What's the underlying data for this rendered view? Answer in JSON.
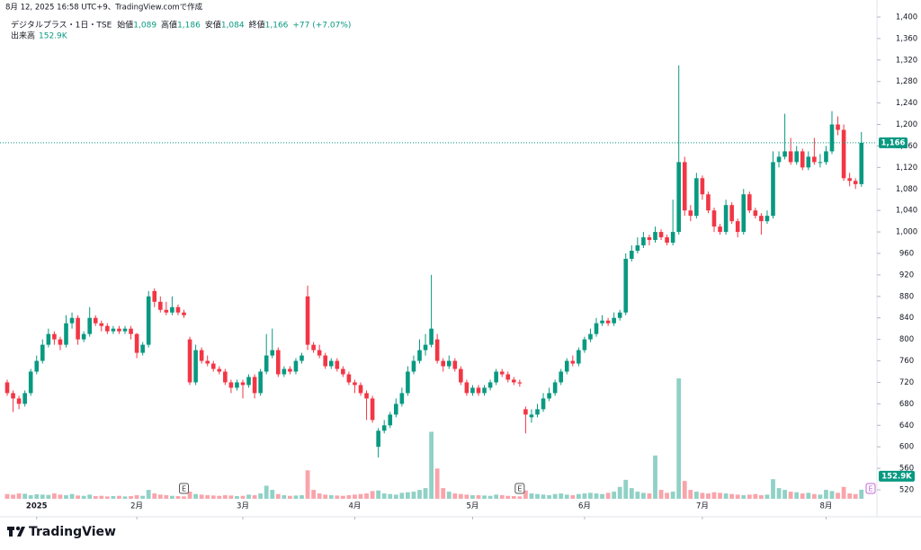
{
  "header": "8月 12, 2025 16:58 UTC+9、TradingView.comで作成",
  "chart_data": {
    "type": "candlestick",
    "symbol": "デジタルプラス・1日・TSE",
    "legend": [
      {
        "label": "始値",
        "value": "1,089"
      },
      {
        "label": "高値",
        "value": "1,186"
      },
      {
        "label": "安値",
        "value": "1,084"
      },
      {
        "label": "終値",
        "value": "1,166"
      }
    ],
    "change": "+77 (+7.07%)",
    "up_color": "#089981",
    "down_color": "#f23645",
    "ylim": [
      503.3,
      1415
    ],
    "yticks": [
      520,
      560,
      600,
      640,
      680,
      720,
      760,
      800,
      840,
      880,
      920,
      960,
      {
        "value": 1000,
        "label": "1,000"
      },
      {
        "value": 1040,
        "label": "1,040"
      },
      {
        "value": 1080,
        "label": "1,080"
      },
      {
        "value": 1120,
        "label": "1,120"
      },
      {
        "value": 1160,
        "label": "1,160"
      },
      {
        "value": 1200,
        "label": "1,200"
      },
      {
        "value": 1240,
        "label": "1,240"
      },
      {
        "value": 1280,
        "label": "1,280"
      },
      {
        "value": 1320,
        "label": "1,320"
      },
      {
        "value": 1360,
        "label": "1,360"
      },
      {
        "value": 1400,
        "label": "1,400"
      }
    ],
    "xticks": [
      {
        "value": 5,
        "label": "2025"
      },
      {
        "value": 22,
        "label": "2月"
      },
      {
        "value": 40,
        "label": "3月"
      },
      {
        "value": 59,
        "label": "4月"
      },
      {
        "value": 79,
        "label": "5月"
      },
      {
        "value": 98,
        "label": "6月"
      },
      {
        "value": 118,
        "label": "7月"
      },
      {
        "value": 139,
        "label": "8月"
      }
    ],
    "current_price": {
      "value": 1166,
      "label": "1,166"
    },
    "events": [
      {
        "index": 30,
        "label": "E"
      },
      {
        "index": 87,
        "label": "E"
      },
      {
        "index": 148,
        "label": "E"
      }
    ],
    "candles": [
      [
        720,
        725,
        695,
        700
      ],
      [
        700,
        705,
        665,
        690
      ],
      [
        690,
        695,
        670,
        680
      ],
      [
        680,
        705,
        675,
        700
      ],
      [
        700,
        745,
        695,
        740
      ],
      [
        740,
        770,
        735,
        760
      ],
      [
        760,
        800,
        755,
        790
      ],
      [
        790,
        820,
        785,
        810
      ],
      [
        810,
        815,
        790,
        800
      ],
      [
        800,
        805,
        780,
        790
      ],
      [
        790,
        845,
        785,
        830
      ],
      [
        830,
        850,
        820,
        840
      ],
      [
        840,
        845,
        790,
        800
      ],
      [
        800,
        815,
        795,
        810
      ],
      [
        810,
        860,
        805,
        840
      ],
      [
        840,
        845,
        825,
        830
      ],
      [
        830,
        835,
        815,
        825
      ],
      [
        825,
        830,
        810,
        815
      ],
      [
        815,
        825,
        810,
        820
      ],
      [
        820,
        825,
        810,
        815
      ],
      [
        815,
        825,
        810,
        820
      ],
      [
        820,
        825,
        800,
        810
      ],
      [
        810,
        812,
        765,
        775
      ],
      [
        775,
        795,
        770,
        790
      ],
      [
        790,
        890,
        785,
        880
      ],
      [
        890,
        895,
        860,
        870
      ],
      [
        870,
        880,
        850,
        855
      ],
      [
        855,
        870,
        845,
        850
      ],
      [
        850,
        880,
        845,
        860
      ],
      [
        860,
        865,
        845,
        850
      ],
      [
        850,
        855,
        840,
        845
      ],
      [
        800,
        805,
        715,
        720
      ],
      [
        720,
        790,
        715,
        780
      ],
      [
        780,
        785,
        755,
        760
      ],
      [
        760,
        770,
        750,
        755
      ],
      [
        755,
        760,
        740,
        745
      ],
      [
        745,
        750,
        735,
        740
      ],
      [
        740,
        745,
        715,
        720
      ],
      [
        720,
        725,
        700,
        710
      ],
      [
        710,
        725,
        705,
        720
      ],
      [
        720,
        725,
        690,
        715
      ],
      [
        715,
        735,
        710,
        730
      ],
      [
        730,
        735,
        690,
        700
      ],
      [
        700,
        745,
        695,
        740
      ],
      [
        740,
        810,
        735,
        770
      ],
      [
        770,
        820,
        765,
        780
      ],
      [
        780,
        785,
        730,
        735
      ],
      [
        735,
        750,
        730,
        745
      ],
      [
        745,
        750,
        735,
        740
      ],
      [
        740,
        765,
        735,
        760
      ],
      [
        760,
        775,
        755,
        770
      ],
      [
        880,
        900,
        780,
        790
      ],
      [
        790,
        795,
        775,
        780
      ],
      [
        780,
        790,
        765,
        770
      ],
      [
        770,
        775,
        745,
        750
      ],
      [
        750,
        765,
        745,
        760
      ],
      [
        760,
        765,
        740,
        745
      ],
      [
        745,
        750,
        730,
        735
      ],
      [
        735,
        740,
        715,
        720
      ],
      [
        720,
        725,
        700,
        715
      ],
      [
        715,
        720,
        695,
        700
      ],
      [
        700,
        705,
        650,
        690
      ],
      [
        690,
        695,
        645,
        650
      ],
      [
        600,
        635,
        580,
        630
      ],
      [
        630,
        650,
        625,
        640
      ],
      [
        640,
        665,
        635,
        660
      ],
      [
        660,
        690,
        655,
        680
      ],
      [
        680,
        710,
        675,
        700
      ],
      [
        700,
        750,
        695,
        740
      ],
      [
        740,
        770,
        735,
        760
      ],
      [
        760,
        800,
        755,
        780
      ],
      [
        780,
        810,
        770,
        790
      ],
      [
        790,
        920,
        785,
        820
      ],
      [
        800,
        810,
        755,
        760
      ],
      [
        760,
        765,
        740,
        750
      ],
      [
        750,
        770,
        745,
        760
      ],
      [
        760,
        765,
        740,
        745
      ],
      [
        745,
        750,
        715,
        720
      ],
      [
        720,
        725,
        695,
        700
      ],
      [
        700,
        715,
        695,
        710
      ],
      [
        710,
        715,
        695,
        700
      ],
      [
        700,
        715,
        695,
        710
      ],
      [
        710,
        725,
        705,
        720
      ],
      [
        720,
        745,
        715,
        740
      ],
      [
        740,
        745,
        730,
        735
      ],
      [
        735,
        740,
        720,
        725
      ],
      [
        725,
        730,
        715,
        720
      ],
      [
        720,
        725,
        712,
        718
      ],
      [
        670,
        675,
        625,
        660
      ],
      [
        655,
        670,
        645,
        660
      ],
      [
        660,
        680,
        655,
        670
      ],
      [
        670,
        700,
        665,
        690
      ],
      [
        690,
        710,
        685,
        700
      ],
      [
        700,
        725,
        695,
        720
      ],
      [
        720,
        745,
        715,
        740
      ],
      [
        740,
        765,
        735,
        760
      ],
      [
        760,
        770,
        750,
        755
      ],
      [
        755,
        785,
        750,
        780
      ],
      [
        780,
        805,
        775,
        800
      ],
      [
        800,
        820,
        795,
        810
      ],
      [
        810,
        840,
        805,
        830
      ],
      [
        830,
        845,
        825,
        835
      ],
      [
        835,
        840,
        825,
        830
      ],
      [
        830,
        850,
        825,
        840
      ],
      [
        840,
        855,
        835,
        850
      ],
      [
        850,
        960,
        845,
        950
      ],
      [
        950,
        975,
        945,
        965
      ],
      [
        965,
        990,
        960,
        975
      ],
      [
        975,
        1000,
        970,
        990
      ],
      [
        990,
        995,
        975,
        985
      ],
      [
        985,
        1010,
        980,
        1000
      ],
      [
        1000,
        1005,
        985,
        990
      ],
      [
        990,
        995,
        975,
        980
      ],
      [
        980,
        1060,
        975,
        1000
      ],
      [
        1000,
        1310,
        995,
        1130
      ],
      [
        1130,
        1140,
        1030,
        1040
      ],
      [
        1040,
        1050,
        1020,
        1030
      ],
      [
        1030,
        1110,
        1025,
        1100
      ],
      [
        1100,
        1105,
        1060,
        1070
      ],
      [
        1070,
        1075,
        1035,
        1040
      ],
      [
        1040,
        1045,
        1000,
        1010
      ],
      [
        1010,
        1015,
        995,
        1000
      ],
      [
        1000,
        1060,
        995,
        1050
      ],
      [
        1050,
        1055,
        1015,
        1020
      ],
      [
        1020,
        1025,
        990,
        1000
      ],
      [
        1000,
        1080,
        995,
        1070
      ],
      [
        1070,
        1075,
        1035,
        1040
      ],
      [
        1040,
        1045,
        1025,
        1030
      ],
      [
        1030,
        1035,
        995,
        1020
      ],
      [
        1020,
        1040,
        1015,
        1030
      ],
      [
        1030,
        1150,
        1025,
        1130
      ],
      [
        1130,
        1150,
        1120,
        1140
      ],
      [
        1140,
        1220,
        1135,
        1150
      ],
      [
        1150,
        1175,
        1125,
        1130
      ],
      [
        1130,
        1160,
        1125,
        1150
      ],
      [
        1150,
        1155,
        1115,
        1120
      ],
      [
        1120,
        1150,
        1115,
        1140
      ],
      [
        1140,
        1175,
        1125,
        1130
      ],
      [
        1130,
        1145,
        1120,
        1130
      ],
      [
        1130,
        1160,
        1125,
        1150
      ],
      [
        1150,
        1225,
        1145,
        1200
      ],
      [
        1200,
        1215,
        1180,
        1190
      ],
      [
        1190,
        1200,
        1095,
        1100
      ],
      [
        1100,
        1110,
        1085,
        1095
      ],
      [
        1095,
        1100,
        1080,
        1089
      ],
      [
        1089,
        1186,
        1084,
        1166
      ]
    ],
    "volume": {
      "name": "出来高",
      "last_label": "152.9K",
      "values": [
        80,
        70,
        90,
        85,
        60,
        75,
        70,
        65,
        90,
        70,
        60,
        80,
        55,
        50,
        70,
        45,
        50,
        40,
        45,
        50,
        40,
        45,
        60,
        50,
        150,
        90,
        70,
        60,
        50,
        45,
        40,
        120,
        80,
        70,
        60,
        55,
        50,
        60,
        55,
        45,
        50,
        70,
        60,
        90,
        220,
        150,
        80,
        60,
        50,
        55,
        60,
        480,
        150,
        90,
        70,
        60,
        55,
        50,
        60,
        70,
        80,
        90,
        130,
        140,
        90,
        80,
        70,
        100,
        110,
        120,
        150,
        180,
        1130,
        510,
        180,
        120,
        90,
        80,
        70,
        60,
        60,
        55,
        50,
        70,
        60,
        50,
        45,
        40,
        140,
        90,
        80,
        70,
        60,
        80,
        90,
        70,
        60,
        80,
        90,
        100,
        90,
        80,
        100,
        120,
        200,
        320,
        180,
        120,
        100,
        90,
        730,
        150,
        100,
        120,
        2030,
        300,
        150,
        120,
        100,
        90,
        110,
        100,
        90,
        80,
        70,
        60,
        70,
        80,
        60,
        70,
        330,
        180,
        150,
        120,
        110,
        90,
        100,
        80,
        70,
        150,
        130,
        100,
        200,
        90,
        80,
        152.9
      ]
    }
  },
  "footer": {
    "brand": "TradingView"
  }
}
